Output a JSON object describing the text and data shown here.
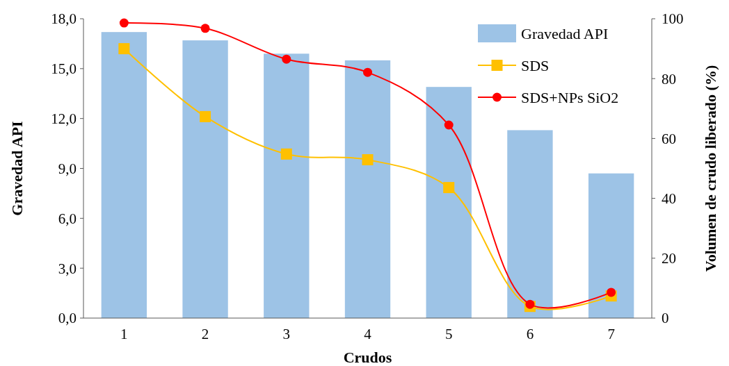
{
  "chart_data": {
    "type": "bar",
    "xlabel": "Crudos",
    "ylabel": "Gravedad API",
    "y2label": "Volumen de crudo liberado (%)",
    "categories": [
      "1",
      "2",
      "3",
      "4",
      "5",
      "6",
      "7"
    ],
    "series": [
      {
        "name": "Gravedad API",
        "color": "#9dc3e6",
        "values": [
          17.2,
          16.7,
          15.9,
          15.5,
          13.9,
          11.3,
          8.7
        ]
      },
      {
        "name": "SDS",
        "type": "line",
        "axis": "y2",
        "color": "#ffc000",
        "marker": "square",
        "values": [
          90,
          67.3,
          54.8,
          52.9,
          43.6,
          3.9,
          7.4
        ]
      },
      {
        "name": "SDS+NPs SiO2",
        "type": "line",
        "axis": "y2",
        "color": "#ff0000",
        "marker": "circle",
        "values": [
          98.6,
          96.8,
          86.5,
          82.1,
          64.5,
          4.6,
          8.6
        ]
      }
    ],
    "ylim": [
      0,
      18
    ],
    "yticks": [
      {
        "value": 0,
        "label": "0,0"
      },
      {
        "value": 3,
        "label": "3,0"
      },
      {
        "value": 6,
        "label": "6,0"
      },
      {
        "value": 9,
        "label": "9,0"
      },
      {
        "value": 12,
        "label": "12,0"
      },
      {
        "value": 15,
        "label": "15,0"
      },
      {
        "value": 18,
        "label": "18,0"
      }
    ],
    "y2lim": [
      0,
      100
    ],
    "y2ticks": [
      0,
      20,
      40,
      60,
      80,
      100
    ],
    "grid": false,
    "legend": "top right"
  }
}
